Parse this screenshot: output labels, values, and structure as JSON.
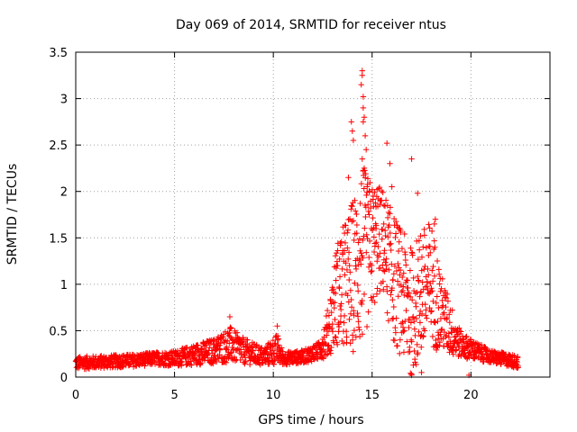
{
  "chart_data": {
    "type": "scatter",
    "title": "Day 069 of 2014, SRMTID for receiver ntus",
    "xlabel": "GPS time / hours",
    "ylabel": "SRMTID / TECUs",
    "xlim": [
      0,
      24
    ],
    "ylim": [
      0,
      3.5
    ],
    "x_ticks": [
      0,
      5,
      10,
      15,
      20
    ],
    "x_tick_labels": [
      "0",
      "5",
      "10",
      "15",
      "20"
    ],
    "y_ticks": [
      0,
      0.5,
      1,
      1.5,
      2,
      2.5,
      3,
      3.5
    ],
    "y_tick_labels": [
      "0",
      "0.5",
      "1",
      "1.5",
      "2",
      "2.5",
      "3",
      "3.5"
    ],
    "grid": true,
    "marker": "+",
    "series": [
      {
        "name": "SRMTID",
        "color": "#ff0000",
        "profile": [
          [
            0,
            0.15,
            0.05
          ],
          [
            1,
            0.16,
            0.05
          ],
          [
            2,
            0.17,
            0.05
          ],
          [
            3,
            0.18,
            0.05
          ],
          [
            4,
            0.2,
            0.05
          ],
          [
            5,
            0.2,
            0.06
          ],
          [
            6,
            0.24,
            0.08
          ],
          [
            7,
            0.28,
            0.1
          ],
          [
            7.8,
            0.35,
            0.14
          ],
          [
            8.5,
            0.28,
            0.1
          ],
          [
            9.5,
            0.22,
            0.07
          ],
          [
            10.2,
            0.3,
            0.12
          ],
          [
            10.5,
            0.2,
            0.05
          ],
          [
            11.5,
            0.22,
            0.05
          ],
          [
            12.3,
            0.28,
            0.07
          ],
          [
            12.8,
            0.5,
            0.2
          ],
          [
            13.2,
            0.9,
            0.4
          ],
          [
            13.8,
            1.0,
            0.55
          ],
          [
            14.5,
            1.3,
            0.7
          ],
          [
            15.0,
            1.4,
            0.5
          ],
          [
            15.5,
            1.5,
            0.4
          ],
          [
            16.0,
            1.1,
            0.5
          ],
          [
            16.5,
            0.9,
            0.5
          ],
          [
            17.0,
            0.7,
            0.5
          ],
          [
            17.5,
            0.9,
            0.5
          ],
          [
            18.0,
            1.0,
            0.5
          ],
          [
            18.5,
            0.7,
            0.3
          ],
          [
            19.0,
            0.5,
            0.2
          ],
          [
            19.5,
            0.35,
            0.1
          ],
          [
            20.0,
            0.3,
            0.08
          ],
          [
            21.0,
            0.22,
            0.05
          ],
          [
            22.0,
            0.18,
            0.05
          ],
          [
            22.4,
            0.16,
            0.05
          ]
        ],
        "peaks": [
          [
            14.5,
            3.3
          ],
          [
            14.5,
            3.25
          ],
          [
            14.45,
            3.15
          ],
          [
            14.55,
            3.02
          ],
          [
            14.55,
            2.9
          ],
          [
            14.6,
            2.8
          ],
          [
            14.55,
            2.75
          ],
          [
            13.95,
            2.75
          ],
          [
            14.0,
            2.65
          ],
          [
            14.05,
            2.55
          ],
          [
            14.65,
            2.6
          ],
          [
            14.7,
            2.45
          ],
          [
            15.75,
            2.52
          ],
          [
            14.5,
            2.35
          ],
          [
            13.8,
            2.15
          ],
          [
            14.6,
            2.25
          ],
          [
            17.0,
            2.35
          ],
          [
            17.3,
            1.98
          ],
          [
            15.9,
            2.3
          ],
          [
            14.75,
            2.05
          ],
          [
            15.05,
            1.95
          ],
          [
            15.25,
            2.02
          ],
          [
            16.0,
            2.05
          ],
          [
            18.2,
            1.7
          ],
          [
            18.15,
            1.65
          ],
          [
            13.6,
            1.55
          ],
          [
            14.3,
            1.45
          ],
          [
            17.45,
            1.52
          ],
          [
            15.4,
            1.9
          ],
          [
            15.6,
            1.85
          ],
          [
            7.8,
            0.65
          ],
          [
            10.2,
            0.55
          ],
          [
            17.0,
            0.02
          ],
          [
            17.5,
            0.05
          ],
          [
            19.9,
            0.02
          ],
          [
            13.2,
            1.2
          ],
          [
            13.4,
            1.42
          ],
          [
            14.85,
            1.75
          ],
          [
            15.2,
            1.6
          ],
          [
            16.4,
            1.1
          ]
        ]
      }
    ]
  }
}
